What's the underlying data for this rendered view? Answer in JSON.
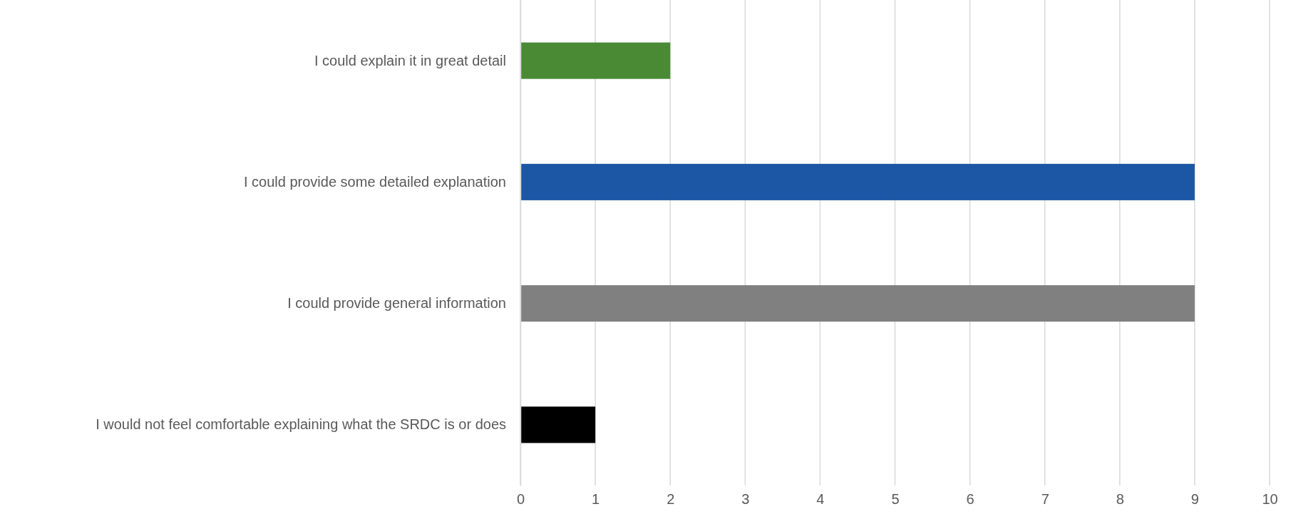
{
  "chart_data": {
    "type": "bar",
    "orientation": "horizontal",
    "categories": [
      "I could explain it in great detail",
      "I could provide some detailed explanation",
      "I could provide general information",
      "I would not feel comfortable explaining what the SRDC is or does"
    ],
    "values": [
      2,
      9,
      9,
      1
    ],
    "colors": [
      "#4a8a35",
      "#1c57a5",
      "#808080",
      "#000000"
    ],
    "xlim": [
      0,
      10
    ],
    "xticks": [
      0,
      1,
      2,
      3,
      4,
      5,
      6,
      7,
      8,
      9,
      10
    ],
    "grid": "x"
  }
}
